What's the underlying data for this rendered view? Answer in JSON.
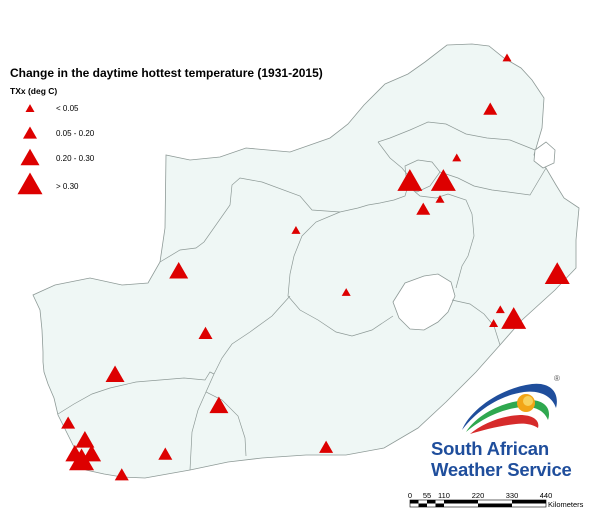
{
  "title": "Change in the daytime hottest temperature (1931-2015)",
  "legend": {
    "title": "TXx (deg C)",
    "items": [
      {
        "label": "< 0.05",
        "size": 1
      },
      {
        "label": "0.05 - 0.20",
        "size": 2
      },
      {
        "label": "0.20 - 0.30",
        "size": 3
      },
      {
        "label": "> 0.30",
        "size": 4
      }
    ]
  },
  "colors": {
    "land": "#eff7f5",
    "border": "#8e9a97",
    "marker": "#dd0000",
    "logo_text": "#1f4e9c"
  },
  "logo": {
    "line1": "South African",
    "line2": "Weather Service",
    "registered": "®"
  },
  "scale": {
    "ticks": [
      "0",
      "55",
      "110",
      "220",
      "330",
      "440"
    ],
    "unit": "Kilometers"
  },
  "stations": [
    {
      "size": 1,
      "lon": 31.0,
      "lat": -22.3
    },
    {
      "size": 2,
      "lon": 30.5,
      "lat": -23.8
    },
    {
      "size": 1,
      "lon": 29.5,
      "lat": -25.2
    },
    {
      "size": 4,
      "lon": 28.1,
      "lat": -25.9
    },
    {
      "size": 4,
      "lon": 29.1,
      "lat": -25.9
    },
    {
      "size": 1,
      "lon": 29.0,
      "lat": -26.4
    },
    {
      "size": 2,
      "lon": 28.5,
      "lat": -26.7
    },
    {
      "size": 1,
      "lon": 24.7,
      "lat": -27.3
    },
    {
      "size": 3,
      "lon": 21.2,
      "lat": -28.5
    },
    {
      "size": 1,
      "lon": 26.2,
      "lat": -29.1
    },
    {
      "size": 4,
      "lon": 32.5,
      "lat": -28.6
    },
    {
      "size": 1,
      "lon": 30.8,
      "lat": -29.6
    },
    {
      "size": 1,
      "lon": 30.6,
      "lat": -30.0
    },
    {
      "size": 4,
      "lon": 31.2,
      "lat": -29.9
    },
    {
      "size": 2,
      "lon": 22.0,
      "lat": -30.3
    },
    {
      "size": 3,
      "lon": 19.3,
      "lat": -31.5
    },
    {
      "size": 3,
      "lon": 22.4,
      "lat": -32.4
    },
    {
      "size": 2,
      "lon": 17.9,
      "lat": -32.9
    },
    {
      "size": 3,
      "lon": 18.4,
      "lat": -33.4
    },
    {
      "size": 3,
      "lon": 18.1,
      "lat": -33.8
    },
    {
      "size": 3,
      "lon": 18.6,
      "lat": -33.8
    },
    {
      "size": 4,
      "lon": 18.3,
      "lat": -34.0
    },
    {
      "size": 2,
      "lon": 20.8,
      "lat": -33.8
    },
    {
      "size": 2,
      "lon": 25.6,
      "lat": -33.6
    },
    {
      "size": 2,
      "lon": 19.5,
      "lat": -34.4
    }
  ]
}
